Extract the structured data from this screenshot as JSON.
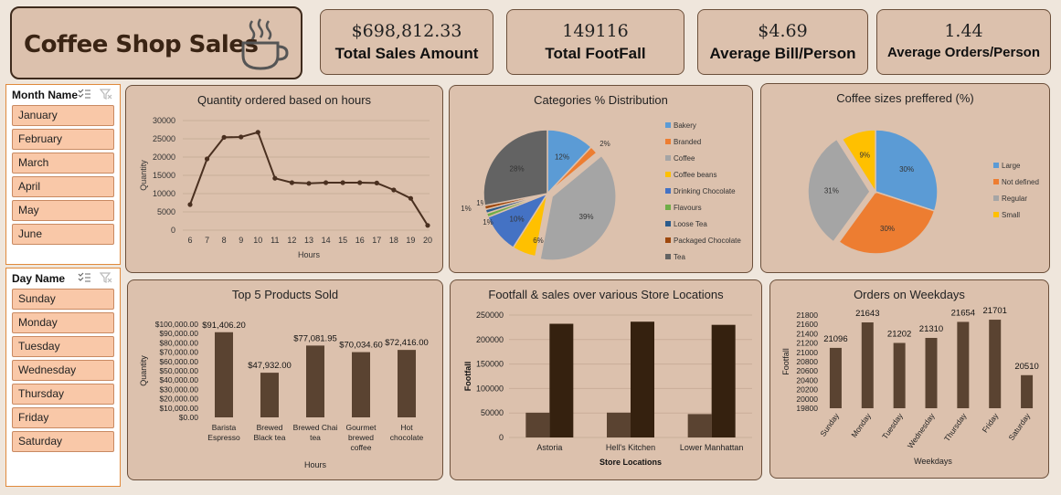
{
  "header": {
    "title": "Coffee Shop Sales"
  },
  "kpis": [
    {
      "value": "$698,812.33",
      "label": "Total Sales Amount"
    },
    {
      "value": "149116",
      "label": "Total FootFall"
    },
    {
      "value": "$4.69",
      "label": "Average Bill/Person"
    },
    {
      "value": "1.44",
      "label": "Average Orders/Person"
    }
  ],
  "month_slicer": {
    "header": "Month Name",
    "items": [
      "January",
      "February",
      "March",
      "April",
      "May",
      "June"
    ]
  },
  "day_slicer": {
    "header": "Day Name",
    "items": [
      "Sunday",
      "Monday",
      "Tuesday",
      "Wednesday",
      "Thursday",
      "Friday",
      "Saturday"
    ]
  },
  "colors": {
    "background": "#efe6dc",
    "card": "#dcc1ad",
    "bar_dark": "#35210f",
    "bar_mid": "#5a4331",
    "slicer_item": "#f9c8a8"
  },
  "chart_data": [
    {
      "type": "line",
      "title": "Quantity ordered based on hours",
      "xlabel": "Hours",
      "ylabel": "Quantity",
      "x": [
        6,
        7,
        8,
        9,
        10,
        11,
        12,
        13,
        14,
        15,
        16,
        17,
        18,
        19,
        20
      ],
      "values": [
        7000,
        19500,
        25400,
        25500,
        26800,
        14200,
        13000,
        12800,
        13000,
        13000,
        13000,
        12900,
        11000,
        8700,
        1300
      ],
      "y_ticks": [
        "0",
        "5000",
        "10000",
        "15000",
        "20000",
        "25000",
        "30000"
      ],
      "ylim": [
        0,
        30000
      ],
      "grid": true
    },
    {
      "type": "pie",
      "title": "Categories % Distribution",
      "labels": [
        "Bakery",
        "Branded",
        "Coffee",
        "Coffee beans",
        "Drinking Chocolate",
        "Flavours",
        "Loose Tea",
        "Packaged Chocolate",
        "Tea"
      ],
      "values": [
        12,
        2,
        39,
        6,
        10,
        1,
        1,
        1,
        28
      ],
      "value_labels": [
        "12%",
        "2%",
        "39%",
        "6%",
        "10%",
        "1%",
        "1%",
        "1%",
        "28%"
      ],
      "colors": [
        "#5b9bd5",
        "#ed7d31",
        "#a5a5a5",
        "#ffc000",
        "#4472c4",
        "#70ad47",
        "#2a5b8c",
        "#9e480e",
        "#636363"
      ],
      "legend": "right"
    },
    {
      "type": "pie",
      "title": "Coffee sizes preffered (%)",
      "labels": [
        "Large",
        "Not defined",
        "Regular",
        "Small"
      ],
      "values": [
        30,
        30,
        31,
        9
      ],
      "value_labels": [
        "30%",
        "30%",
        "31%",
        "9%"
      ],
      "colors": [
        "#5b9bd5",
        "#ed7d31",
        "#a5a5a5",
        "#ffc000"
      ],
      "legend": "right"
    },
    {
      "type": "bar",
      "title": "Top 5 Products Sold",
      "xlabel": "Hours",
      "ylabel": "Quantity",
      "categories": [
        "Barista Espresso",
        "Brewed Black tea",
        "Brewed Chai tea",
        "Gourmet brewed coffee",
        "Hot chocolate"
      ],
      "category_lines": [
        [
          "Barista",
          "Espresso"
        ],
        [
          "Brewed",
          "Black tea"
        ],
        [
          "Brewed Chai",
          "tea"
        ],
        [
          "Gourmet",
          "brewed",
          "coffee"
        ],
        [
          "Hot",
          "chocolate"
        ]
      ],
      "values": [
        91406.2,
        47932.0,
        77081.95,
        70034.6,
        72416.0
      ],
      "value_labels": [
        "$91,406.20",
        "$47,932.00",
        "$77,081.95",
        "$70,034.60",
        "$72,416.00"
      ],
      "y_ticks": [
        "$0.00",
        "$10,000.00",
        "$20,000.00",
        "$30,000.00",
        "$40,000.00",
        "$50,000.00",
        "$60,000.00",
        "$70,000.00",
        "$80,000.00",
        "$90,000.00",
        "$100,000.00"
      ],
      "ylim": [
        0,
        100000
      ]
    },
    {
      "type": "bar",
      "title": "Footfall & sales over various Store Locations",
      "xlabel": "Store Locations",
      "ylabel": "Footfall",
      "categories": [
        "Astoria",
        "Hell's Kitchen",
        "Lower Manhattan"
      ],
      "series": [
        {
          "values": [
            50599,
            50735,
            47782
          ]
        },
        {
          "values": [
            232244,
            236511,
            230057
          ]
        }
      ],
      "y_ticks": [
        "0",
        "50000",
        "100000",
        "150000",
        "200000",
        "250000"
      ],
      "ylim": [
        0,
        250000
      ],
      "grid": true
    },
    {
      "type": "bar",
      "title": "Orders on Weekdays",
      "xlabel": "Weekdays",
      "ylabel": "Footfall",
      "categories": [
        "Sunday",
        "Monday",
        "Tuesday",
        "Wednesday",
        "Thursday",
        "Friday",
        "Saturday"
      ],
      "values": [
        21096,
        21643,
        21202,
        21310,
        21654,
        21701,
        20510
      ],
      "value_labels": [
        "21096",
        "21643",
        "21202",
        "21310",
        "21654",
        "21701",
        "20510"
      ],
      "y_ticks": [
        "19800",
        "20000",
        "20200",
        "20400",
        "20600",
        "20800",
        "21000",
        "21200",
        "21400",
        "21600",
        "21800"
      ],
      "ylim": [
        19800,
        21800
      ]
    }
  ]
}
